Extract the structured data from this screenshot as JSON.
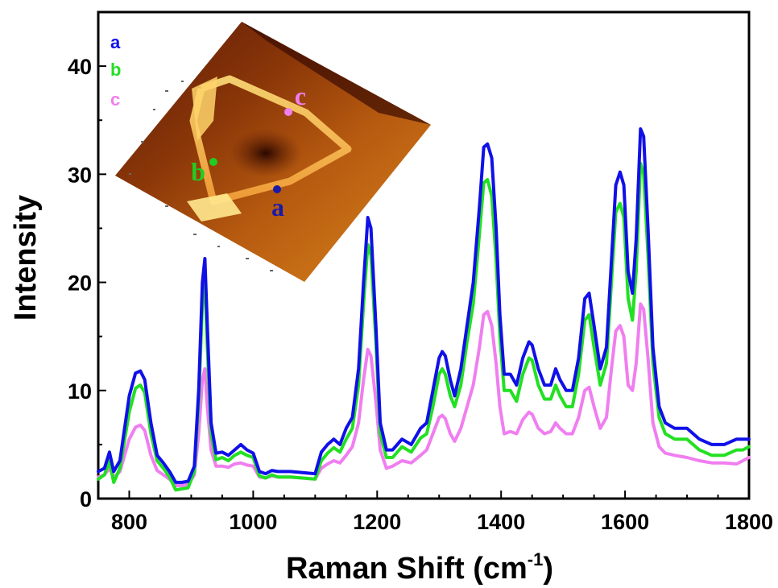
{
  "chart_data": {
    "type": "line",
    "xlabel": "Raman Shift (cm",
    "xlabel_superscript": "-1",
    "xlabel_suffix": ")",
    "ylabel": "Intensity",
    "xlim": [
      750,
      1800
    ],
    "ylim": [
      0,
      45
    ],
    "xticks": [
      800,
      1000,
      1200,
      1400,
      1600,
      1800
    ],
    "yticks": [
      0,
      10,
      20,
      30,
      40
    ],
    "grid": false,
    "legend": {
      "placement": "top-left",
      "entries": [
        {
          "label": "a",
          "color": "#1010e8"
        },
        {
          "label": "b",
          "color": "#22e022"
        },
        {
          "label": "c",
          "color": "#f07ef0"
        }
      ]
    },
    "inset": {
      "description": "3D surface topography image",
      "points": [
        {
          "label": "a",
          "color": "#1a1aa8"
        },
        {
          "label": "b",
          "color": "#22cc22"
        },
        {
          "label": "c",
          "color": "#f07ef0"
        }
      ]
    },
    "series": [
      {
        "name": "a",
        "color": "#1010e8",
        "x": [
          750,
          760,
          768,
          775,
          785,
          800,
          810,
          818,
          825,
          835,
          845,
          855,
          865,
          875,
          885,
          895,
          905,
          912,
          918,
          922,
          926,
          932,
          940,
          950,
          960,
          970,
          980,
          990,
          1000,
          1010,
          1020,
          1030,
          1040,
          1060,
          1080,
          1100,
          1110,
          1120,
          1130,
          1140,
          1150,
          1160,
          1170,
          1178,
          1185,
          1190,
          1198,
          1205,
          1215,
          1225,
          1240,
          1255,
          1270,
          1280,
          1290,
          1300,
          1305,
          1310,
          1318,
          1325,
          1335,
          1345,
          1355,
          1365,
          1372,
          1378,
          1385,
          1392,
          1398,
          1405,
          1415,
          1425,
          1435,
          1445,
          1450,
          1460,
          1470,
          1480,
          1488,
          1495,
          1505,
          1515,
          1525,
          1535,
          1542,
          1550,
          1560,
          1570,
          1578,
          1585,
          1592,
          1598,
          1605,
          1612,
          1618,
          1625,
          1630,
          1637,
          1645,
          1655,
          1665,
          1680,
          1700,
          1720,
          1740,
          1760,
          1780,
          1790,
          1800
        ],
        "y": [
          2.5,
          2.8,
          4.3,
          2.5,
          3.5,
          9.5,
          11.6,
          11.8,
          11.0,
          7.0,
          4.0,
          3.3,
          2.5,
          1.5,
          1.5,
          1.6,
          3.0,
          10.0,
          20.0,
          22.2,
          16.0,
          7.0,
          4.2,
          4.3,
          4.0,
          4.5,
          5.0,
          4.5,
          4.2,
          2.5,
          2.3,
          2.6,
          2.5,
          2.5,
          2.4,
          2.3,
          4.3,
          5.0,
          5.5,
          5.0,
          6.5,
          7.5,
          12.0,
          20.0,
          26.0,
          25.0,
          16.0,
          7.0,
          4.5,
          4.5,
          5.5,
          5.0,
          6.5,
          7.0,
          10.0,
          13.0,
          13.6,
          13.2,
          11.0,
          9.5,
          12.0,
          16.0,
          20.0,
          27.0,
          32.5,
          32.8,
          31.5,
          25.0,
          17.0,
          11.5,
          11.5,
          10.5,
          13.0,
          14.5,
          14.2,
          12.0,
          10.5,
          10.5,
          12.0,
          11.0,
          10.0,
          10.0,
          13.0,
          18.5,
          19.0,
          16.0,
          12.0,
          14.0,
          22.0,
          29.0,
          30.2,
          29.0,
          21.0,
          19.0,
          24.0,
          34.2,
          33.5,
          25.0,
          14.0,
          8.5,
          7.0,
          6.5,
          6.5,
          5.5,
          5.0,
          5.0,
          5.5,
          5.5,
          5.5
        ]
      },
      {
        "name": "b",
        "color": "#22e022",
        "x": [
          750,
          760,
          768,
          775,
          785,
          800,
          810,
          818,
          825,
          835,
          845,
          855,
          865,
          875,
          885,
          895,
          905,
          912,
          918,
          922,
          926,
          932,
          940,
          950,
          960,
          970,
          980,
          990,
          1000,
          1010,
          1020,
          1030,
          1040,
          1060,
          1080,
          1100,
          1110,
          1120,
          1130,
          1140,
          1150,
          1160,
          1170,
          1178,
          1185,
          1190,
          1198,
          1205,
          1215,
          1225,
          1240,
          1255,
          1270,
          1280,
          1290,
          1300,
          1305,
          1310,
          1318,
          1325,
          1335,
          1345,
          1355,
          1365,
          1372,
          1378,
          1385,
          1392,
          1398,
          1405,
          1415,
          1425,
          1435,
          1445,
          1450,
          1460,
          1470,
          1480,
          1488,
          1495,
          1505,
          1515,
          1525,
          1535,
          1542,
          1550,
          1560,
          1570,
          1578,
          1585,
          1592,
          1598,
          1605,
          1612,
          1618,
          1625,
          1630,
          1637,
          1645,
          1655,
          1665,
          1680,
          1700,
          1720,
          1740,
          1760,
          1780,
          1790,
          1800
        ],
        "y": [
          1.8,
          2.2,
          3.5,
          1.5,
          2.8,
          8.0,
          10.2,
          10.5,
          9.8,
          6.0,
          3.5,
          2.8,
          2.0,
          0.8,
          0.9,
          1.0,
          2.5,
          9.0,
          18.0,
          20.0,
          14.0,
          6.0,
          3.6,
          3.8,
          3.5,
          4.0,
          4.3,
          4.0,
          3.8,
          2.1,
          1.9,
          2.2,
          2.0,
          2.0,
          1.9,
          1.8,
          3.5,
          4.2,
          4.7,
          4.3,
          5.5,
          6.5,
          10.5,
          18.0,
          23.5,
          22.5,
          14.5,
          6.0,
          3.8,
          3.8,
          4.8,
          4.3,
          5.6,
          6.0,
          8.5,
          11.5,
          12.0,
          11.5,
          9.5,
          8.5,
          10.5,
          14.5,
          18.0,
          24.5,
          29.2,
          29.5,
          28.0,
          22.0,
          15.0,
          10.0,
          10.0,
          9.0,
          11.5,
          13.0,
          12.8,
          10.5,
          9.2,
          9.2,
          10.5,
          9.5,
          8.5,
          8.5,
          11.5,
          16.5,
          17.0,
          14.0,
          10.5,
          12.5,
          20.0,
          26.5,
          27.3,
          26.0,
          18.5,
          16.5,
          21.0,
          31.0,
          30.0,
          22.5,
          12.5,
          7.5,
          6.0,
          5.5,
          5.5,
          4.5,
          4.0,
          4.0,
          4.5,
          4.5,
          4.8
        ]
      },
      {
        "name": "c",
        "color": "#f07ef0",
        "x": [
          750,
          760,
          768,
          775,
          785,
          800,
          810,
          818,
          825,
          835,
          845,
          855,
          865,
          875,
          885,
          895,
          905,
          912,
          918,
          922,
          926,
          932,
          940,
          950,
          960,
          970,
          980,
          990,
          1000,
          1010,
          1020,
          1030,
          1040,
          1060,
          1080,
          1100,
          1110,
          1120,
          1130,
          1140,
          1150,
          1160,
          1170,
          1178,
          1185,
          1190,
          1198,
          1205,
          1215,
          1225,
          1240,
          1255,
          1270,
          1280,
          1290,
          1300,
          1305,
          1310,
          1318,
          1325,
          1335,
          1345,
          1355,
          1365,
          1372,
          1378,
          1385,
          1392,
          1398,
          1405,
          1415,
          1425,
          1435,
          1445,
          1450,
          1460,
          1470,
          1480,
          1488,
          1495,
          1505,
          1515,
          1525,
          1535,
          1542,
          1550,
          1560,
          1570,
          1578,
          1585,
          1592,
          1598,
          1605,
          1612,
          1618,
          1625,
          1630,
          1637,
          1645,
          1655,
          1665,
          1680,
          1700,
          1720,
          1740,
          1760,
          1780,
          1790,
          1800
        ],
        "y": [
          2.0,
          2.2,
          2.8,
          2.0,
          2.5,
          5.5,
          6.6,
          6.8,
          6.3,
          4.0,
          2.6,
          2.2,
          1.8,
          1.2,
          1.2,
          1.3,
          2.2,
          6.0,
          11.0,
          12.0,
          8.5,
          4.5,
          3.0,
          3.0,
          2.9,
          3.2,
          3.3,
          3.1,
          3.0,
          2.0,
          1.9,
          2.1,
          2.0,
          2.0,
          1.9,
          1.8,
          2.8,
          3.2,
          3.5,
          3.3,
          4.0,
          4.8,
          7.0,
          11.0,
          13.8,
          13.2,
          9.0,
          4.5,
          2.8,
          3.0,
          3.5,
          3.3,
          4.0,
          4.5,
          6.0,
          7.5,
          7.7,
          7.4,
          6.0,
          5.3,
          6.5,
          8.5,
          10.5,
          14.0,
          17.0,
          17.3,
          16.0,
          12.5,
          8.5,
          6.0,
          6.2,
          6.0,
          7.3,
          8.0,
          7.8,
          6.5,
          6.0,
          6.2,
          7.0,
          6.5,
          6.0,
          6.0,
          7.5,
          10.0,
          10.3,
          8.5,
          6.5,
          7.5,
          12.0,
          15.5,
          16.0,
          15.0,
          10.5,
          10.0,
          12.5,
          18.0,
          17.5,
          13.0,
          7.0,
          4.8,
          4.2,
          4.0,
          3.8,
          3.5,
          3.3,
          3.3,
          3.2,
          3.5,
          3.8
        ]
      }
    ]
  }
}
